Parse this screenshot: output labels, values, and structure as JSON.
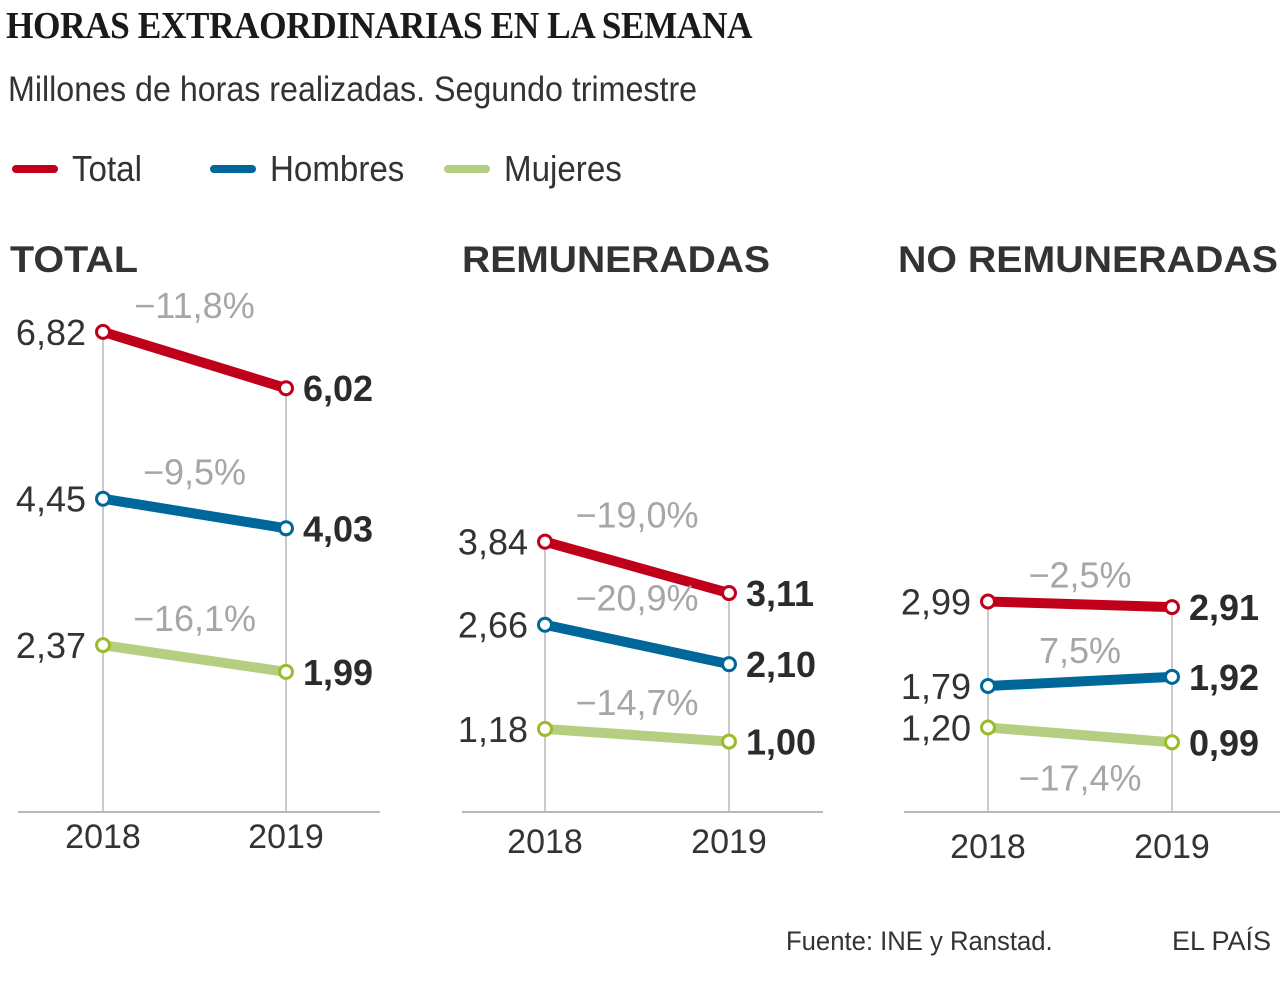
{
  "header": {
    "title": "HORAS EXTRAORDINARIAS EN LA SEMANA",
    "subtitle": "Millones de horas realizadas. Segundo trimestre"
  },
  "legend": [
    {
      "name": "Total",
      "color": "#c0001a"
    },
    {
      "name": "Hombres",
      "color": "#00679a"
    },
    {
      "name": "Mujeres",
      "color": "#b5cf82"
    }
  ],
  "colors": {
    "Total": "#c0001a",
    "Hombres": "#00679a",
    "Mujeres": "#b5cf82",
    "Mujeres_marker": "#9cbb2c",
    "pct_label": "#a6a6a6",
    "axis": "#b8b8b8"
  },
  "footer": {
    "source": "Fuente: INE y Ranstad.",
    "brand": "EL PAÍS"
  },
  "chart_data": [
    {
      "type": "line",
      "title": "TOTAL",
      "x": [
        "2018",
        "2019"
      ],
      "series": [
        {
          "name": "Total",
          "values": [
            6.82,
            6.02
          ],
          "labels": [
            "6,82",
            "6,02"
          ],
          "change": "−11,8%"
        },
        {
          "name": "Hombres",
          "values": [
            4.45,
            4.03
          ],
          "labels": [
            "4,45",
            "4,03"
          ],
          "change": "−9,5%"
        },
        {
          "name": "Mujeres",
          "values": [
            2.37,
            1.99
          ],
          "labels": [
            "2,37",
            "1,99"
          ],
          "change": "−16,1%"
        }
      ],
      "xlabel": "",
      "ylabel": "",
      "ylim": [
        0,
        7
      ]
    },
    {
      "type": "line",
      "title": "REMUNERADAS",
      "x": [
        "2018",
        "2019"
      ],
      "series": [
        {
          "name": "Total",
          "values": [
            3.84,
            3.11
          ],
          "labels": [
            "3,84",
            "3,11"
          ],
          "change": "−19,0%"
        },
        {
          "name": "Hombres",
          "values": [
            2.66,
            2.1
          ],
          "labels": [
            "2,66",
            "2,10"
          ],
          "change": "−20,9%"
        },
        {
          "name": "Mujeres",
          "values": [
            1.18,
            1.0
          ],
          "labels": [
            "1,18",
            "1,00"
          ],
          "change": "−14,7%"
        }
      ],
      "xlabel": "",
      "ylabel": "",
      "ylim": [
        0,
        7
      ]
    },
    {
      "type": "line",
      "title": "NO REMUNERADAS",
      "x": [
        "2018",
        "2019"
      ],
      "series": [
        {
          "name": "Total",
          "values": [
            2.99,
            2.91
          ],
          "labels": [
            "2,99",
            "2,91"
          ],
          "change": "−2,5%"
        },
        {
          "name": "Hombres",
          "values": [
            1.79,
            1.92
          ],
          "labels": [
            "1,79",
            "1,92"
          ],
          "change": "7,5%"
        },
        {
          "name": "Mujeres",
          "values": [
            1.2,
            0.99
          ],
          "labels": [
            "1,20",
            "0,99"
          ],
          "change": "−17,4%",
          "change_position": "below"
        }
      ],
      "xlabel": "",
      "ylabel": "",
      "ylim": [
        0,
        7
      ]
    }
  ]
}
